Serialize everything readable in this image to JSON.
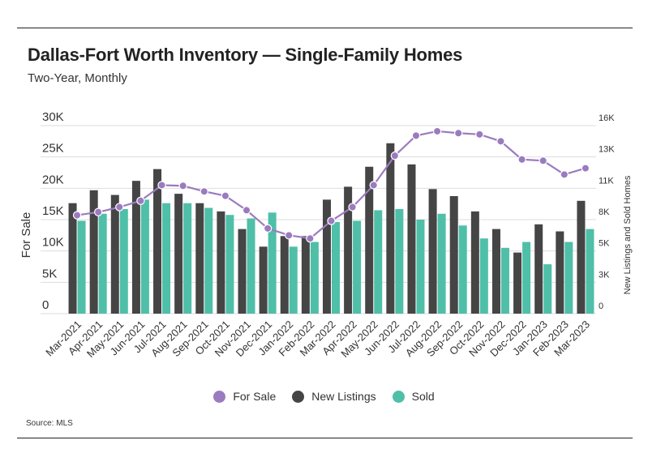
{
  "header": {
    "title": "Dallas-Fort Worth Inventory — Single-Family Homes",
    "subtitle": "Two-Year, Monthly"
  },
  "footer": {
    "source": "Source: MLS"
  },
  "colors": {
    "for_sale": "#9b7bbf",
    "new_listings": "#454545",
    "sold": "#4fbfa8",
    "grid": "#dddddd"
  },
  "legend": [
    {
      "label": "For Sale",
      "color": "#9b7bbf"
    },
    {
      "label": "New Listings",
      "color": "#454545"
    },
    {
      "label": "Sold",
      "color": "#4fbfa8"
    }
  ],
  "chart_data": {
    "type": "bar",
    "title": "Dallas-Fort Worth Inventory — Single-Family Homes",
    "subtitle": "Two-Year, Monthly",
    "categories": [
      "Mar-2021",
      "Apr-2021",
      "May-2021",
      "Jun-2021",
      "Jul-2021",
      "Aug-2021",
      "Sep-2021",
      "Oct-2021",
      "Nov-2021",
      "Dec-2021",
      "Jan-2022",
      "Feb-2022",
      "Mar-2022",
      "Apr-2022",
      "May-2022",
      "Jun-2022",
      "Jul-2022",
      "Aug-2022",
      "Sep-2022",
      "Oct-2022",
      "Nov-2022",
      "Dec-2022",
      "Jan-2023",
      "Feb-2023",
      "Mar-2023"
    ],
    "ylabel_left": "For Sale",
    "ylabel_right": "New Listings and Sold Homes",
    "ylim_left": [
      0,
      30000
    ],
    "ylim_right": [
      0,
      16000
    ],
    "yticks_left": [
      "0",
      "5K",
      "10K",
      "15K",
      "20K",
      "25K",
      "30K"
    ],
    "yticks_right": [
      "0",
      "3K",
      "5K",
      "8K",
      "11K",
      "13K",
      "16K"
    ],
    "grid": true,
    "legend_position": "bottom",
    "series": [
      {
        "name": "For Sale",
        "kind": "line",
        "axis": "left",
        "values": [
          15700,
          16200,
          17000,
          18000,
          20500,
          20400,
          19500,
          18800,
          16500,
          13600,
          12500,
          12000,
          14800,
          17000,
          20500,
          25200,
          28400,
          29100,
          28800,
          28600,
          27500,
          24600,
          24400,
          22200,
          23200
        ]
      },
      {
        "name": "New Listings",
        "kind": "bar",
        "axis": "right",
        "values": [
          9400,
          10500,
          10100,
          11300,
          12300,
          10200,
          9400,
          8700,
          7200,
          5700,
          6600,
          6600,
          9700,
          10800,
          12500,
          14500,
          12700,
          10600,
          10000,
          8700,
          7200,
          5200,
          7600,
          7000,
          9600
        ]
      },
      {
        "name": "Sold",
        "kind": "bar",
        "axis": "right",
        "values": [
          7900,
          8500,
          8900,
          9700,
          9400,
          9400,
          9000,
          8400,
          8100,
          8600,
          5700,
          6100,
          7800,
          7900,
          8800,
          8900,
          8000,
          8500,
          7500,
          6400,
          5600,
          6100,
          4200,
          6100,
          7200
        ]
      }
    ]
  }
}
